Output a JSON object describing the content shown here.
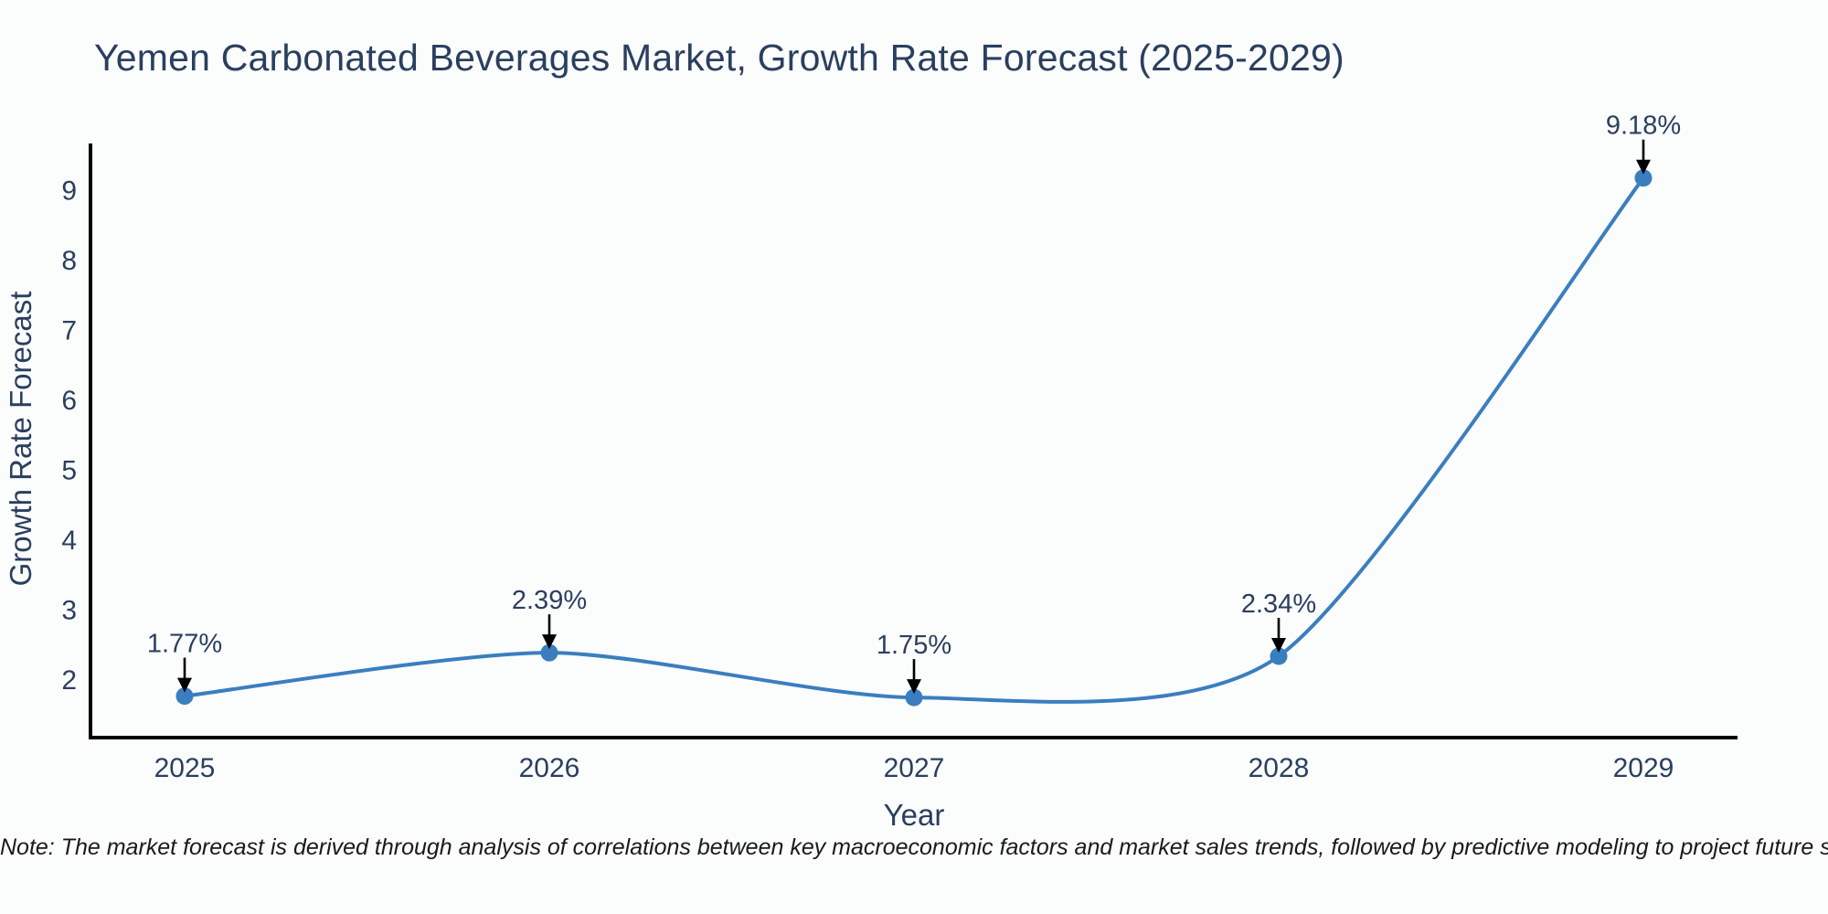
{
  "title": "Yemen Carbonated Beverages Market, Growth Rate Forecast (2025-2029)",
  "note": "Note: The market forecast is derived through analysis of correlations between key macroeconomic factors and market sales trends, followed by predictive modeling to project future sales.",
  "colors": {
    "accent": "#3a7ebf",
    "text": "#2a3f5f",
    "axis_line": "#000000",
    "arrow": "#000000",
    "background": "#fbfcfc"
  },
  "chart_data": {
    "type": "line",
    "line_shape": "spline",
    "title": "Yemen Carbonated Beverages Market, Growth Rate Forecast (2025-2029)",
    "categories": [
      "2025",
      "2026",
      "2027",
      "2028",
      "2029"
    ],
    "values": [
      1.77,
      2.39,
      1.75,
      2.34,
      9.18
    ],
    "point_labels": [
      "1.77%",
      "2.39%",
      "1.75%",
      "2.34%",
      "9.18%"
    ],
    "xlabel": "Year",
    "ylabel": "Growth Rate Forecast",
    "yticks": [
      2,
      3,
      4,
      5,
      6,
      7,
      8,
      9
    ],
    "ylim": [
      1.2,
      9.65
    ],
    "grid": false,
    "legend": "none",
    "markers": true,
    "annotations_arrows": true
  }
}
